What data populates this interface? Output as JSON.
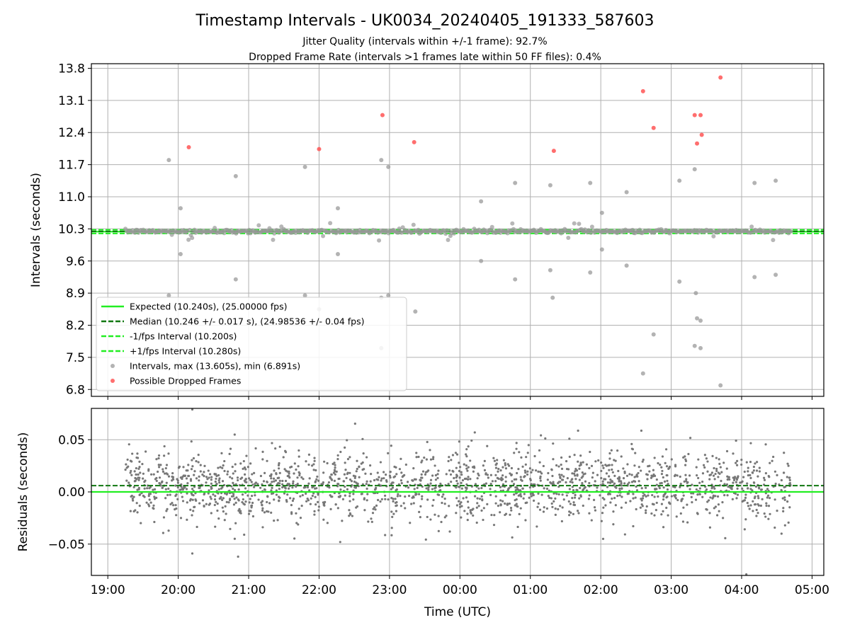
{
  "chart_data": [
    {
      "type": "scatter",
      "title": "Timestamp Intervals - UK0034_20240405_191333_587603",
      "subtitle_1": "Jitter Quality (intervals within +/-1 frame): 92.7%",
      "subtitle_2": "Dropped Frame Rate (intervals >1 frames late within 50 FF files): 0.4%",
      "ylabel": "Intervals (seconds)",
      "ylim": [
        6.65,
        13.9
      ],
      "yticks": [
        "6.8",
        "7.5",
        "8.2",
        "8.9",
        "9.6",
        "10.3",
        "11.0",
        "11.7",
        "12.4",
        "13.1",
        "13.8"
      ],
      "grid": true,
      "legend_position": "lower-left",
      "expected_line": 10.24,
      "median_line": 10.246,
      "lower_interval": 10.2,
      "upper_interval": 10.28,
      "legend": [
        "Expected (10.240s), (25.00000 fps)",
        "Median (10.246 +/- 0.017 s), (24.98536 +/- 0.04 fps)",
        "-1/fps Interval (10.200s)",
        "+1/fps Interval (10.280s)",
        "Intervals, max (13.605s), min (6.891s)",
        "Possible Dropped Frames"
      ],
      "colors": {
        "expected": "#22ee22",
        "median": "#117711",
        "interval_bounds": "#22ee22",
        "intervals": "#999999",
        "dropped": "#ff5555"
      },
      "dropped_frames": [
        {
          "x": "20:09",
          "y": 12.08
        },
        {
          "x": "22:00",
          "y": 12.04
        },
        {
          "x": "22:54",
          "y": 12.78
        },
        {
          "x": "23:21",
          "y": 12.19
        },
        {
          "x": "01:20",
          "y": 12.0
        },
        {
          "x": "02:36",
          "y": 13.3
        },
        {
          "x": "02:45",
          "y": 12.5
        },
        {
          "x": "03:20",
          "y": 12.78
        },
        {
          "x": "03:22",
          "y": 12.16
        },
        {
          "x": "03:25",
          "y": 12.78
        },
        {
          "x": "03:26",
          "y": 12.35
        },
        {
          "x": "03:42",
          "y": 13.6
        }
      ],
      "intervals_outliers": [
        {
          "x": "19:52",
          "y": 11.8
        },
        {
          "x": "20:02",
          "y": 10.75
        },
        {
          "x": "20:02",
          "y": 9.75
        },
        {
          "x": "19:52",
          "y": 8.85
        },
        {
          "x": "20:49",
          "y": 11.45
        },
        {
          "x": "20:49",
          "y": 9.2
        },
        {
          "x": "21:48",
          "y": 11.65
        },
        {
          "x": "21:48",
          "y": 8.85
        },
        {
          "x": "22:00",
          "y": 8.55
        },
        {
          "x": "22:16",
          "y": 10.75
        },
        {
          "x": "22:16",
          "y": 9.75
        },
        {
          "x": "22:53",
          "y": 11.8
        },
        {
          "x": "22:59",
          "y": 11.65
        },
        {
          "x": "22:53",
          "y": 8.8
        },
        {
          "x": "22:59",
          "y": 8.85
        },
        {
          "x": "22:53",
          "y": 7.7
        },
        {
          "x": "23:22",
          "y": 8.5
        },
        {
          "x": "00:18",
          "y": 10.9
        },
        {
          "x": "00:18",
          "y": 9.6
        },
        {
          "x": "00:47",
          "y": 11.3
        },
        {
          "x": "00:47",
          "y": 9.2
        },
        {
          "x": "01:17",
          "y": 11.25
        },
        {
          "x": "01:17",
          "y": 9.4
        },
        {
          "x": "01:19",
          "y": 8.8
        },
        {
          "x": "01:51",
          "y": 11.3
        },
        {
          "x": "01:51",
          "y": 9.35
        },
        {
          "x": "02:01",
          "y": 10.65
        },
        {
          "x": "02:01",
          "y": 9.85
        },
        {
          "x": "02:22",
          "y": 11.1
        },
        {
          "x": "02:22",
          "y": 9.5
        },
        {
          "x": "02:36",
          "y": 7.15
        },
        {
          "x": "02:45",
          "y": 8.0
        },
        {
          "x": "03:07",
          "y": 11.35
        },
        {
          "x": "03:07",
          "y": 9.15
        },
        {
          "x": "03:20",
          "y": 11.6
        },
        {
          "x": "03:21",
          "y": 8.9
        },
        {
          "x": "03:22",
          "y": 8.35
        },
        {
          "x": "03:25",
          "y": 8.3
        },
        {
          "x": "03:20",
          "y": 7.75
        },
        {
          "x": "03:25",
          "y": 7.7
        },
        {
          "x": "03:42",
          "y": 6.89
        },
        {
          "x": "04:11",
          "y": 11.3
        },
        {
          "x": "04:11",
          "y": 9.25
        },
        {
          "x": "04:29",
          "y": 11.35
        },
        {
          "x": "04:29",
          "y": 9.3
        }
      ],
      "x_range": [
        "18:46",
        "05:10"
      ],
      "xticks": [
        "19:00",
        "20:00",
        "21:00",
        "22:00",
        "23:00",
        "00:00",
        "01:00",
        "02:00",
        "03:00",
        "04:00",
        "05:00"
      ]
    },
    {
      "type": "scatter",
      "ylabel": "Residuals (seconds)",
      "xlabel": "Time (UTC)",
      "ylim": [
        -0.08,
        0.08
      ],
      "yticks": [
        "−0.05",
        "0.00",
        "0.05"
      ],
      "xticks": [
        "19:00",
        "20:00",
        "21:00",
        "22:00",
        "23:00",
        "00:00",
        "01:00",
        "02:00",
        "03:00",
        "04:00",
        "05:00"
      ],
      "x_range": [
        "18:46",
        "05:10"
      ],
      "zero_line": 0.0,
      "median_offset": 0.006,
      "grid": true,
      "residual_std": 0.017,
      "residual_outliers": [
        {
          "x": "20:12",
          "y": 0.079
        },
        {
          "x": "20:12",
          "y": -0.059
        },
        {
          "x": "20:51",
          "y": -0.062
        },
        {
          "x": "22:18",
          "y": -0.048
        },
        {
          "x": "02:02",
          "y": -0.045
        },
        {
          "x": "04:04",
          "y": -0.079
        },
        {
          "x": "04:34",
          "y": -0.04
        },
        {
          "x": "04:37",
          "y": -0.032
        }
      ],
      "colors": {
        "points": "#777777",
        "zero_line": "#22ee22",
        "median_line": "#117711"
      }
    }
  ]
}
